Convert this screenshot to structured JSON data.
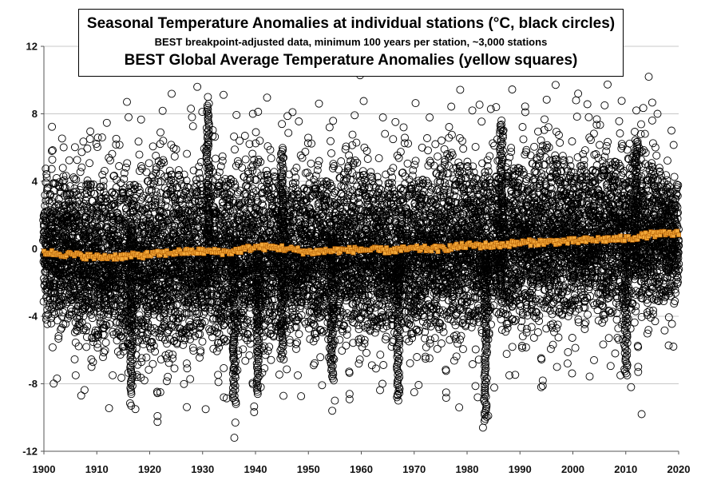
{
  "chart_data": {
    "type": "scatter",
    "title": "Seasonal Temperature Anomalies at individual stations (°C, black circles)",
    "subtitle": "BEST breakpoint-adjusted data, minimum 100 years per station, ~3,000 stations",
    "title2": "BEST Global Average Temperature Anomalies (yellow squares)",
    "xlim": [
      1900,
      2020
    ],
    "ylim": [
      -12,
      12
    ],
    "x_ticks": [
      "1900",
      "1910",
      "1920",
      "1930",
      "1940",
      "1950",
      "1960",
      "1970",
      "1980",
      "1990",
      "2000",
      "2010",
      "2020"
    ],
    "y_ticks": [
      "12",
      "8",
      "4",
      "0",
      "-4",
      "-8",
      "-12"
    ],
    "grid": true,
    "legend": "none",
    "series": [
      {
        "marker": "circle-open",
        "color": "#000000",
        "envelope": [
          {
            "x": 1900,
            "low": -3.5,
            "high": 3.5
          },
          {
            "x": 1910,
            "low": -5.0,
            "high": 4.0
          },
          {
            "x": 1920,
            "low": -5.5,
            "high": 4.0
          },
          {
            "x": 1930,
            "low": -5.0,
            "high": 4.5
          },
          {
            "x": 1940,
            "low": -5.0,
            "high": 4.2
          },
          {
            "x": 1950,
            "low": -4.5,
            "high": 4.2
          },
          {
            "x": 1960,
            "low": -4.5,
            "high": 4.2
          },
          {
            "x": 1970,
            "low": -4.5,
            "high": 4.2
          },
          {
            "x": 1980,
            "low": -4.2,
            "high": 4.8
          },
          {
            "x": 1990,
            "low": -3.8,
            "high": 5.0
          },
          {
            "x": 2000,
            "low": -3.5,
            "high": 5.2
          },
          {
            "x": 2010,
            "low": -3.3,
            "high": 5.4
          },
          {
            "x": 2020,
            "low": -2.5,
            "high": 4.0
          }
        ],
        "outliers": [
          {
            "x": 1901.5,
            "y": 5.8
          },
          {
            "x": 1906,
            "y": -7.5
          },
          {
            "x": 1909,
            "y": -7.0
          },
          {
            "x": 1911,
            "y": 6.6
          },
          {
            "x": 1913,
            "y": -7.5
          },
          {
            "x": 1916,
            "y": 7.8
          },
          {
            "x": 1916.5,
            "y": -9.3
          },
          {
            "x": 1917.3,
            "y": -9.5
          },
          {
            "x": 1919,
            "y": -7.8
          },
          {
            "x": 1922,
            "y": -8.5
          },
          {
            "x": 1925,
            "y": 5.9
          },
          {
            "x": 1927,
            "y": -6.8
          },
          {
            "x": 1928,
            "y": 7.8
          },
          {
            "x": 1929,
            "y": 9.6
          },
          {
            "x": 1931,
            "y": 9.0
          },
          {
            "x": 1931.2,
            "y": 8.6
          },
          {
            "x": 1933,
            "y": -7.9
          },
          {
            "x": 1934,
            "y": -8.8
          },
          {
            "x": 1936,
            "y": -11.2
          },
          {
            "x": 1936.2,
            "y": -10.3
          },
          {
            "x": 1937,
            "y": 6.4
          },
          {
            "x": 1938,
            "y": 6.7
          },
          {
            "x": 1939.5,
            "y": 8.0
          },
          {
            "x": 1941,
            "y": -8.2
          },
          {
            "x": 1945,
            "y": 7.4
          },
          {
            "x": 1947,
            "y": 8.1
          },
          {
            "x": 1948,
            "y": -7.5
          },
          {
            "x": 1951,
            "y": -6.9
          },
          {
            "x": 1954,
            "y": 7.2
          },
          {
            "x": 1954.5,
            "y": -9.6
          },
          {
            "x": 1955,
            "y": -9.0
          },
          {
            "x": 1957,
            "y": 5.9
          },
          {
            "x": 1962,
            "y": -6.9
          },
          {
            "x": 1964,
            "y": -8.0
          },
          {
            "x": 1966,
            "y": 6.5
          },
          {
            "x": 1967,
            "y": -9.0
          },
          {
            "x": 1968,
            "y": 7.2
          },
          {
            "x": 1970,
            "y": -8.5
          },
          {
            "x": 1971.5,
            "y": 6.0
          },
          {
            "x": 1974,
            "y": 6.2
          },
          {
            "x": 1978.5,
            "y": -9.4
          },
          {
            "x": 1981,
            "y": 8.2
          },
          {
            "x": 1982,
            "y": -8.8
          },
          {
            "x": 1983,
            "y": -10.6
          },
          {
            "x": 1984,
            "y": -9.9
          },
          {
            "x": 1985.5,
            "y": 8.4
          },
          {
            "x": 1986.5,
            "y": 7.6
          },
          {
            "x": 1988,
            "y": -7.5
          },
          {
            "x": 1991,
            "y": 8.1
          },
          {
            "x": 1994,
            "y": -8.2
          },
          {
            "x": 1997,
            "y": -7.0
          },
          {
            "x": 1999,
            "y": -6.8
          },
          {
            "x": 2001,
            "y": 9.2
          },
          {
            "x": 2003,
            "y": 7.8
          },
          {
            "x": 2004,
            "y": -6.6
          },
          {
            "x": 2006,
            "y": 8.5
          },
          {
            "x": 2008,
            "y": -6.2
          },
          {
            "x": 2009,
            "y": -7.5
          },
          {
            "x": 2011,
            "y": -8.2
          },
          {
            "x": 2012,
            "y": 8.2
          },
          {
            "x": 2013,
            "y": -9.8
          },
          {
            "x": 2015,
            "y": 7.6
          },
          {
            "x": 2016,
            "y": 8.0
          },
          {
            "x": 2019,
            "y": -5.8
          }
        ]
      },
      {
        "marker": "square-filled",
        "color": "#f2a93b",
        "edge_color": "#b35c00",
        "x": [
          1900,
          1905,
          1910,
          1915,
          1920,
          1925,
          1930,
          1935,
          1940,
          1945,
          1950,
          1955,
          1960,
          1965,
          1970,
          1975,
          1980,
          1985,
          1990,
          1995,
          2000,
          2005,
          2010,
          2015,
          2020
        ],
        "y": [
          -0.2,
          -0.35,
          -0.5,
          -0.45,
          -0.35,
          -0.2,
          -0.15,
          -0.2,
          0.1,
          0.05,
          -0.2,
          -0.1,
          -0.05,
          -0.1,
          0.0,
          0.0,
          0.2,
          0.2,
          0.35,
          0.4,
          0.45,
          0.55,
          0.6,
          0.85,
          0.9
        ]
      }
    ]
  }
}
